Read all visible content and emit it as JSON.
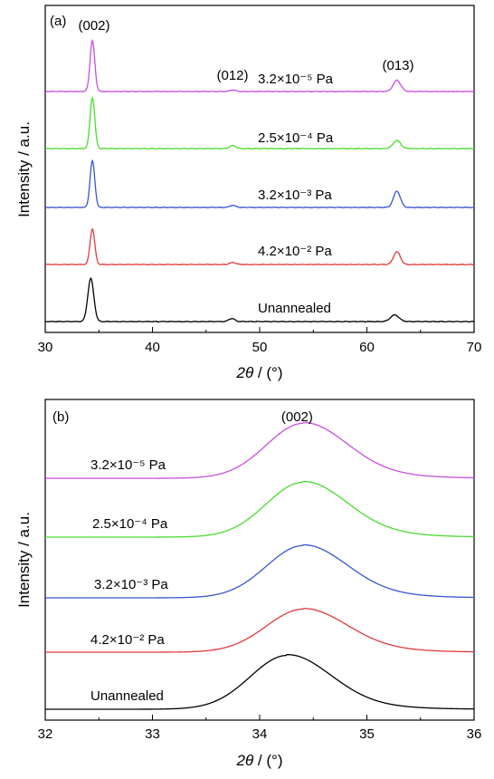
{
  "chart_data": [
    {
      "type": "line",
      "panel_label": "(a)",
      "xlabel_prefix": "2θ",
      "xlabel_suffix": " / (°)",
      "ylabel": "Intensity / a.u.",
      "xlim": [
        30,
        70
      ],
      "x_ticks": [
        "30",
        "40",
        "50",
        "60",
        "70"
      ],
      "peak_labels": [
        {
          "text": "(002)",
          "x": 34.4
        },
        {
          "text": "(012)",
          "x": 47.5
        },
        {
          "text": "(013)",
          "x": 62.8
        }
      ],
      "series": [
        {
          "label": "Unannealed",
          "color": "#000000",
          "peaks": [
            {
              "x": 34.25,
              "h": 0.85,
              "w": 0.28
            },
            {
              "x": 47.4,
              "h": 0.06,
              "w": 0.28
            },
            {
              "x": 62.6,
              "h": 0.13,
              "w": 0.4
            }
          ]
        },
        {
          "label": "4.2×10⁻² Pa",
          "color": "#e23a3a",
          "peaks": [
            {
              "x": 34.4,
              "h": 0.7,
              "w": 0.22
            },
            {
              "x": 47.5,
              "h": 0.04,
              "w": 0.28
            },
            {
              "x": 62.8,
              "h": 0.25,
              "w": 0.32
            }
          ]
        },
        {
          "label": "3.2×10⁻³ Pa",
          "color": "#3a55d0",
          "peaks": [
            {
              "x": 34.4,
              "h": 0.92,
              "w": 0.22
            },
            {
              "x": 47.5,
              "h": 0.04,
              "w": 0.28
            },
            {
              "x": 62.8,
              "h": 0.32,
              "w": 0.32
            }
          ]
        },
        {
          "label": "2.5×10⁻⁴ Pa",
          "color": "#49dc2e",
          "peaks": [
            {
              "x": 34.4,
              "h": 1.0,
              "w": 0.22
            },
            {
              "x": 47.5,
              "h": 0.06,
              "w": 0.28
            },
            {
              "x": 62.8,
              "h": 0.16,
              "w": 0.35
            }
          ]
        },
        {
          "label": "3.2×10⁻⁵ Pa",
          "color": "#c84ee0",
          "peaks": [
            {
              "x": 34.4,
              "h": 1.0,
              "w": 0.22
            },
            {
              "x": 47.5,
              "h": 0.03,
              "w": 0.28
            },
            {
              "x": 62.8,
              "h": 0.22,
              "w": 0.35
            }
          ]
        }
      ]
    },
    {
      "type": "line",
      "panel_label": "(b)",
      "xlabel_prefix": "2θ",
      "xlabel_suffix": " / (°)",
      "ylabel": "Intensity / a.u.",
      "xlim": [
        32,
        36
      ],
      "x_ticks": [
        "32",
        "33",
        "34",
        "35",
        "36"
      ],
      "peak_labels": [
        {
          "text": "(002)",
          "x": 34.4
        }
      ],
      "series": [
        {
          "label": "Unannealed",
          "color": "#000000",
          "center": 34.25,
          "h": 1.0
        },
        {
          "label": "4.2×10⁻² Pa",
          "color": "#e23a3a",
          "center": 34.4,
          "h": 0.8
        },
        {
          "label": "3.2×10⁻³ Pa",
          "color": "#3a55d0",
          "center": 34.4,
          "h": 0.97
        },
        {
          "label": "2.5×10⁻⁴ Pa",
          "color": "#49dc2e",
          "center": 34.4,
          "h": 1.02
        },
        {
          "label": "3.2×10⁻⁵ Pa",
          "color": "#c84ee0",
          "center": 34.4,
          "h": 1.02
        }
      ]
    }
  ]
}
